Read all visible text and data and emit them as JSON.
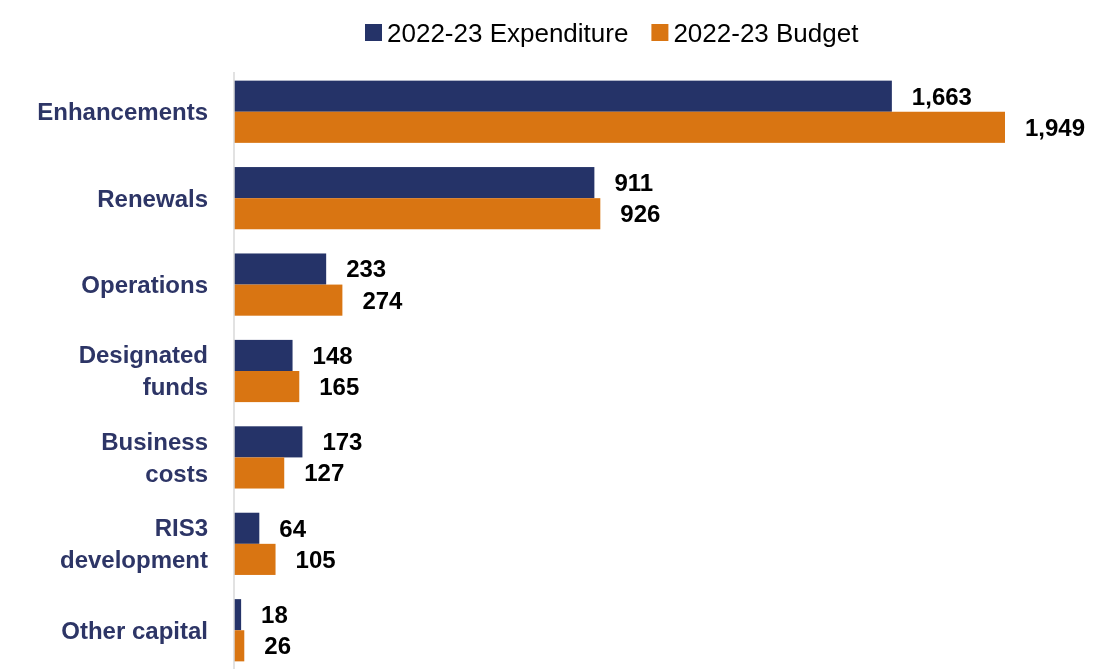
{
  "chart_data": {
    "type": "bar",
    "orientation": "horizontal",
    "categories": [
      "Enhancements",
      "Renewals",
      "Operations",
      "Designated funds",
      "Business costs",
      "RIS3 development",
      "Other capital"
    ],
    "series": [
      {
        "name": "2022-23 Expenditure",
        "color": "#253368",
        "values": [
          1663,
          911,
          233,
          148,
          173,
          64,
          18
        ],
        "value_labels": [
          "1,663",
          "911",
          "233",
          "148",
          "173",
          "64",
          "18"
        ]
      },
      {
        "name": "2022-23 Budget",
        "color": "#d97512",
        "values": [
          1949,
          926,
          274,
          165,
          127,
          105,
          26
        ],
        "value_labels": [
          "1,949",
          "926",
          "274",
          "165",
          "127",
          "105",
          "26"
        ]
      }
    ],
    "legend": "top"
  }
}
